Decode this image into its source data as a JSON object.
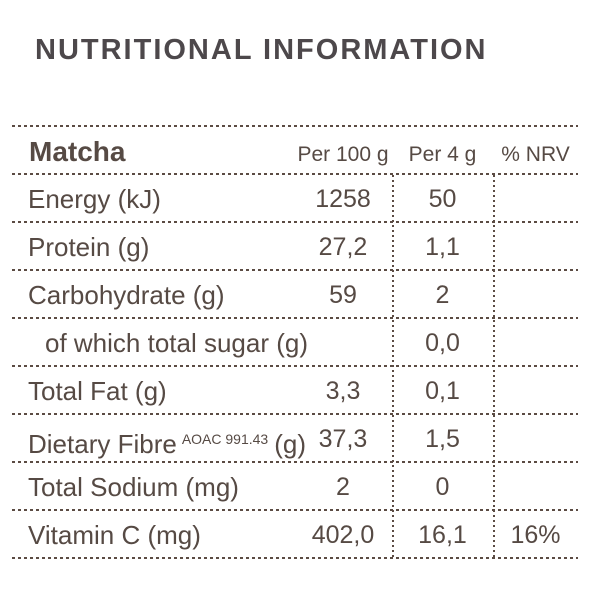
{
  "title": "NUTRITIONAL INFORMATION",
  "colors": {
    "text_brown": "#564a44",
    "title_gray": "#4d484b",
    "line": "#5b4b43",
    "background": "#ffffff"
  },
  "table": {
    "product": "Matcha",
    "columns": {
      "per100": "Per 100 g",
      "per4": "Per 4 g",
      "nrv": "% NRV"
    },
    "rows": [
      {
        "label": "Energy (kJ)",
        "per100": "1258",
        "per4": "50",
        "nrv": ""
      },
      {
        "label": "Protein (g)",
        "per100": "27,2",
        "per4": "1,1",
        "nrv": ""
      },
      {
        "label": "Carbohydrate (g)",
        "per100": "59",
        "per4": "2",
        "nrv": ""
      },
      {
        "label": "of which total sugar (g)",
        "per100": "",
        "per4": "0,0",
        "nrv": ""
      },
      {
        "label": "Total Fat (g)",
        "per100": "3,3",
        "per4": "0,1",
        "nrv": ""
      },
      {
        "label": "Dietary Fibre",
        "sup": "AOAC 991.43",
        "suffix": "(g)",
        "per100": "37,3",
        "per4": "1,5",
        "nrv": ""
      },
      {
        "label": "Total Sodium (mg)",
        "per100": "2",
        "per4": "0",
        "nrv": ""
      },
      {
        "label": "Vitamin C (mg)",
        "per100": "402,0",
        "per4": "16,1",
        "nrv": "16%"
      }
    ]
  }
}
